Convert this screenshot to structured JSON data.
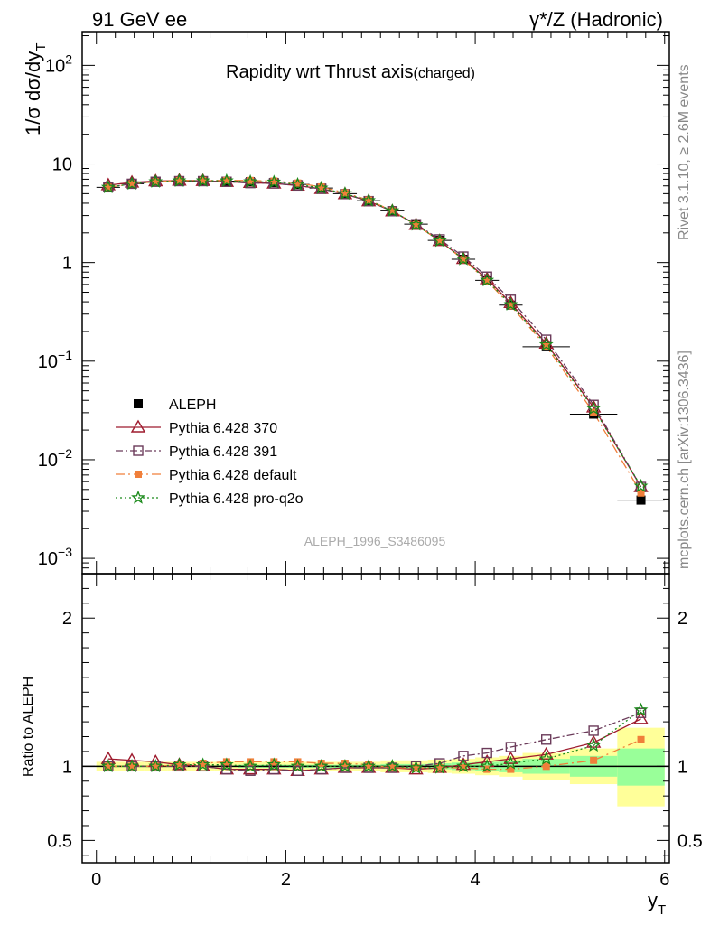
{
  "header": {
    "left_label": "91 GeV ee",
    "right_label": "γ*/Z (Hadronic)"
  },
  "side": {
    "rivet": "Rivet 3.1.10, ≥ 2.6M events",
    "mcplots": "mcplots.cern.ch [arXiv:1306.3436]"
  },
  "chart_data": [
    {
      "type": "line",
      "title": "Rapidity wrt Thrust axis",
      "subtitle": "(charged)",
      "ylabel": "1/σ dσ/dy_T",
      "yscale": "log",
      "ylim": [
        0.0007,
        220
      ],
      "xlim": [
        -0.15,
        6.05
      ],
      "x_ticks": [
        "0",
        "2",
        "4",
        "6"
      ],
      "y_ticks": [
        {
          "base": "10",
          "exp": "−3",
          "value": 0.001
        },
        {
          "base": "10",
          "exp": "−2",
          "value": 0.01
        },
        {
          "base": "10",
          "exp": "−1",
          "value": 0.1
        },
        {
          "base": "1",
          "exp": "",
          "value": 1
        },
        {
          "base": "10",
          "exp": "",
          "value": 10
        },
        {
          "base": "10",
          "exp": "2",
          "value": 100
        }
      ],
      "analysis_tag": "ALEPH_1996_S3486095",
      "x": [
        0.125,
        0.375,
        0.625,
        0.875,
        1.125,
        1.375,
        1.625,
        1.875,
        2.125,
        2.375,
        2.625,
        2.875,
        3.125,
        3.375,
        3.625,
        3.875,
        4.125,
        4.375,
        4.75,
        5.25,
        5.75
      ],
      "x_err": [
        0.125,
        0.125,
        0.125,
        0.125,
        0.125,
        0.125,
        0.125,
        0.125,
        0.125,
        0.125,
        0.125,
        0.125,
        0.125,
        0.125,
        0.125,
        0.125,
        0.125,
        0.125,
        0.25,
        0.25,
        0.25
      ],
      "series": [
        {
          "name": "ALEPH",
          "color": "#000000",
          "marker": "filled-square",
          "dash": "none",
          "values": [
            5.8,
            6.3,
            6.6,
            6.7,
            6.7,
            6.7,
            6.6,
            6.5,
            6.2,
            5.7,
            5.0,
            4.25,
            3.35,
            2.45,
            1.68,
            1.08,
            0.66,
            0.37,
            0.14,
            0.029,
            0.0039
          ]
        },
        {
          "name": "Pythia 6.428 370",
          "color": "#9e1b2e",
          "marker": "open-triangle",
          "dash": "none",
          "values": [
            6.1,
            6.5,
            6.7,
            6.8,
            6.75,
            6.6,
            6.45,
            6.35,
            6.05,
            5.6,
            4.95,
            4.2,
            3.32,
            2.42,
            1.66,
            1.09,
            0.68,
            0.39,
            0.151,
            0.034,
            0.0053
          ]
        },
        {
          "name": "Pythia 6.428 391",
          "color": "#6b3b5a",
          "marker": "open-square",
          "dash": "8,3,2,3",
          "values": [
            5.8,
            6.3,
            6.6,
            6.7,
            6.7,
            6.6,
            6.4,
            6.35,
            6.05,
            5.6,
            4.95,
            4.2,
            3.32,
            2.45,
            1.72,
            1.15,
            0.72,
            0.42,
            0.165,
            0.036,
            0.0053
          ]
        },
        {
          "name": "Pythia 6.428 default",
          "color": "#f07f3a",
          "marker": "filled-square-small",
          "dash": "10,4,2,4",
          "values": [
            5.8,
            6.3,
            6.6,
            6.8,
            6.8,
            6.8,
            6.8,
            6.7,
            6.4,
            5.85,
            5.1,
            4.3,
            3.35,
            2.42,
            1.66,
            1.07,
            0.65,
            0.365,
            0.141,
            0.0302,
            0.0046
          ]
        },
        {
          "name": "Pythia 6.428 pro-q2o",
          "color": "#1a8a1a",
          "marker": "open-star",
          "dash": "2,3",
          "values": [
            5.8,
            6.3,
            6.6,
            6.75,
            6.75,
            6.75,
            6.6,
            6.55,
            6.2,
            5.7,
            5.0,
            4.25,
            3.35,
            2.42,
            1.66,
            1.08,
            0.66,
            0.375,
            0.147,
            0.033,
            0.0054
          ]
        }
      ]
    },
    {
      "type": "line",
      "ylabel": "Ratio to ALEPH",
      "xlabel": "y_T",
      "ylim": [
        0.35,
        2.3
      ],
      "xlim": [
        -0.15,
        6.05
      ],
      "x_ticks": [
        "0",
        "2",
        "4",
        "6"
      ],
      "y_ticks": [
        {
          "label": "0.5",
          "value": 0.5
        },
        {
          "label": "1",
          "value": 1
        },
        {
          "label": "2",
          "value": 2
        }
      ],
      "reference_line": 1,
      "band_colors": {
        "inner": "#99ff99",
        "outer": "#ffff99"
      },
      "band_inner": [
        [
          0.995,
          1.005
        ],
        [
          0.995,
          1.005
        ],
        [
          0.995,
          1.005
        ],
        [
          0.995,
          1.005
        ],
        [
          0.995,
          1.005
        ],
        [
          0.995,
          1.005
        ],
        [
          0.99,
          1.01
        ],
        [
          0.99,
          1.01
        ],
        [
          0.99,
          1.01
        ],
        [
          0.99,
          1.01
        ],
        [
          0.99,
          1.01
        ],
        [
          0.99,
          1.01
        ],
        [
          0.985,
          1.015
        ],
        [
          0.985,
          1.015
        ],
        [
          0.98,
          1.02
        ],
        [
          0.975,
          1.025
        ],
        [
          0.97,
          1.03
        ],
        [
          0.96,
          1.04
        ],
        [
          0.95,
          1.05
        ],
        [
          0.93,
          1.07
        ],
        [
          0.87,
          1.12
        ]
      ],
      "band_outer": [
        [
          0.97,
          1.03
        ],
        [
          0.97,
          1.03
        ],
        [
          0.97,
          1.03
        ],
        [
          0.97,
          1.03
        ],
        [
          0.97,
          1.03
        ],
        [
          0.97,
          1.03
        ],
        [
          0.97,
          1.03
        ],
        [
          0.97,
          1.03
        ],
        [
          0.97,
          1.03
        ],
        [
          0.97,
          1.03
        ],
        [
          0.97,
          1.03
        ],
        [
          0.97,
          1.03
        ],
        [
          0.96,
          1.04
        ],
        [
          0.96,
          1.04
        ],
        [
          0.955,
          1.045
        ],
        [
          0.95,
          1.05
        ],
        [
          0.94,
          1.06
        ],
        [
          0.93,
          1.07
        ],
        [
          0.91,
          1.09
        ],
        [
          0.88,
          1.12
        ],
        [
          0.73,
          1.26
        ]
      ],
      "series": [
        {
          "name": "Pythia 6.428 370",
          "values": [
            1.05,
            1.04,
            1.03,
            1.01,
            1.0,
            0.98,
            0.98,
            0.98,
            0.97,
            0.98,
            0.99,
            0.99,
            0.99,
            0.98,
            0.99,
            1.01,
            1.03,
            1.05,
            1.08,
            1.16,
            1.32
          ]
        },
        {
          "name": "Pythia 6.428 391",
          "values": [
            1.0,
            1.0,
            1.0,
            1.0,
            1.0,
            0.98,
            0.97,
            0.98,
            0.97,
            0.98,
            0.99,
            0.99,
            0.99,
            1.0,
            1.02,
            1.07,
            1.09,
            1.13,
            1.18,
            1.24,
            1.36
          ]
        },
        {
          "name": "Pythia 6.428 default",
          "values": [
            1.0,
            1.0,
            1.0,
            1.01,
            1.02,
            1.03,
            1.03,
            1.03,
            1.03,
            1.02,
            1.02,
            1.01,
            0.99,
            0.99,
            0.99,
            0.99,
            0.98,
            0.98,
            1.0,
            1.04,
            1.18
          ]
        },
        {
          "name": "Pythia 6.428 pro-q2o",
          "values": [
            1.0,
            1.0,
            1.0,
            1.01,
            1.01,
            1.01,
            1.0,
            1.01,
            1.0,
            1.0,
            1.0,
            1.0,
            1.0,
            0.99,
            0.99,
            1.0,
            1.0,
            1.02,
            1.05,
            1.14,
            1.38
          ]
        }
      ]
    }
  ]
}
